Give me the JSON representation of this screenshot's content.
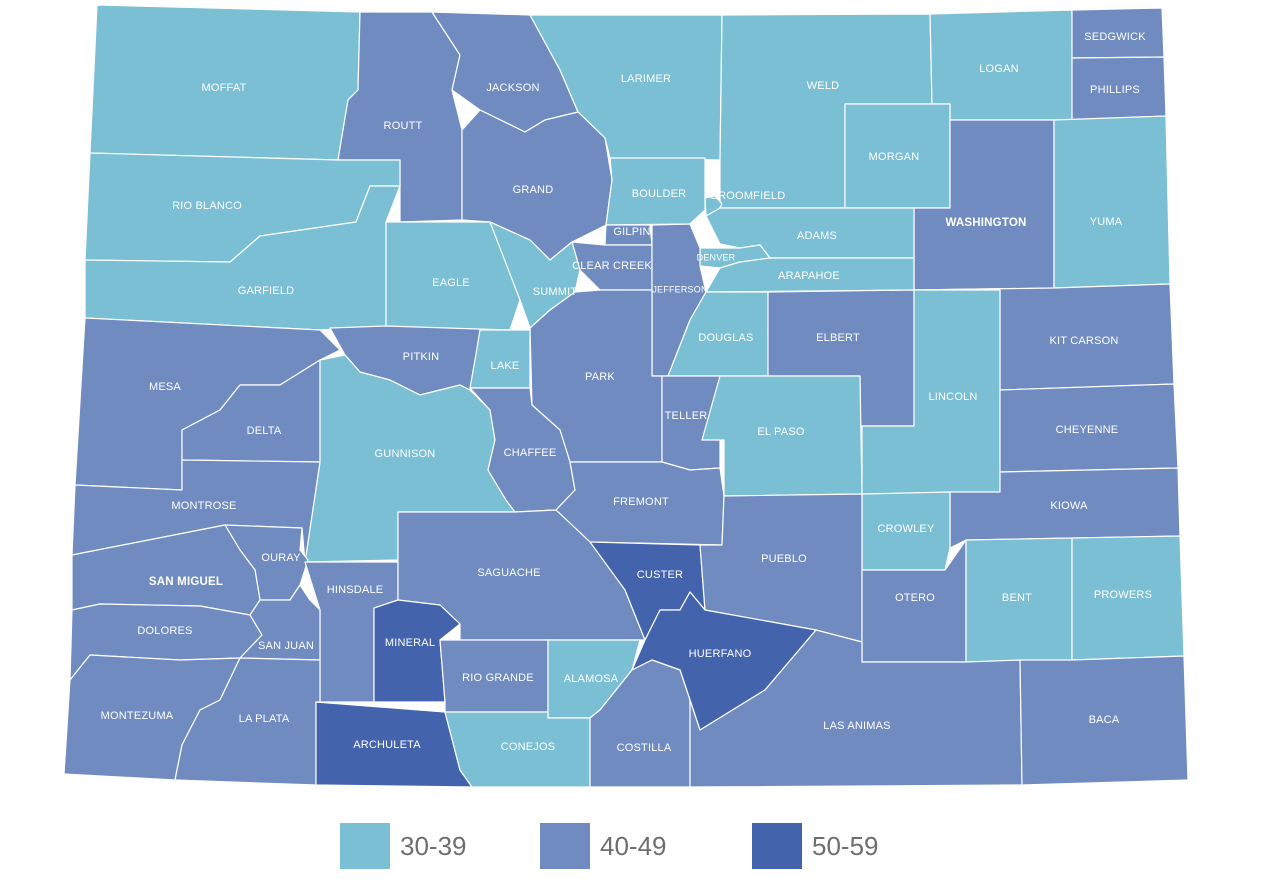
{
  "colors": {
    "band_30_39": "#7abfd3",
    "band_40_49": "#6f8bc0",
    "band_50_59": "#4463ad",
    "border": "#ffffff",
    "label": "#ffffff",
    "legend_text": "#6e6e6e"
  },
  "legend": [
    {
      "label": "30-39",
      "color": "#7abfd3"
    },
    {
      "label": "40-49",
      "color": "#6f8bc0"
    },
    {
      "label": "50-59",
      "color": "#4463ad"
    }
  ],
  "counties": [
    {
      "name": "MOFFAT",
      "band": "30-39"
    },
    {
      "name": "ROUTT",
      "band": "40-49"
    },
    {
      "name": "JACKSON",
      "band": "40-49"
    },
    {
      "name": "LARIMER",
      "band": "30-39"
    },
    {
      "name": "WELD",
      "band": "30-39"
    },
    {
      "name": "LOGAN",
      "band": "30-39"
    },
    {
      "name": "SEDGWICK",
      "band": "40-49"
    },
    {
      "name": "PHILLIPS",
      "band": "40-49"
    },
    {
      "name": "MORGAN",
      "band": "30-39"
    },
    {
      "name": "WASHINGTON",
      "band": "40-49"
    },
    {
      "name": "YUMA",
      "band": "30-39"
    },
    {
      "name": "RIO BLANCO",
      "band": "30-39"
    },
    {
      "name": "GRAND",
      "band": "40-49"
    },
    {
      "name": "BOULDER",
      "band": "30-39"
    },
    {
      "name": "BROOMFIELD",
      "band": "30-39"
    },
    {
      "name": "GILPIN",
      "band": "40-49"
    },
    {
      "name": "CLEAR CREEK",
      "band": "40-49"
    },
    {
      "name": "ADAMS",
      "band": "30-39"
    },
    {
      "name": "DENVER",
      "band": "30-39"
    },
    {
      "name": "ARAPAHOE",
      "band": "30-39"
    },
    {
      "name": "JEFFERSON",
      "band": "40-49"
    },
    {
      "name": "GARFIELD",
      "band": "30-39"
    },
    {
      "name": "EAGLE",
      "band": "30-39"
    },
    {
      "name": "SUMMIT",
      "band": "30-39"
    },
    {
      "name": "DOUGLAS",
      "band": "30-39"
    },
    {
      "name": "ELBERT",
      "band": "40-49"
    },
    {
      "name": "KIT CARSON",
      "band": "40-49"
    },
    {
      "name": "LINCOLN",
      "band": "30-39"
    },
    {
      "name": "CHEYENNE",
      "band": "40-49"
    },
    {
      "name": "MESA",
      "band": "40-49"
    },
    {
      "name": "PITKIN",
      "band": "40-49"
    },
    {
      "name": "LAKE",
      "band": "30-39"
    },
    {
      "name": "PARK",
      "band": "40-49"
    },
    {
      "name": "TELLER",
      "band": "40-49"
    },
    {
      "name": "EL PASO",
      "band": "30-39"
    },
    {
      "name": "DELTA",
      "band": "40-49"
    },
    {
      "name": "GUNNISON",
      "band": "30-39"
    },
    {
      "name": "CHAFFEE",
      "band": "40-49"
    },
    {
      "name": "FREMONT",
      "band": "40-49"
    },
    {
      "name": "MONTROSE",
      "band": "40-49"
    },
    {
      "name": "KIOWA",
      "band": "40-49"
    },
    {
      "name": "CROWLEY",
      "band": "30-39"
    },
    {
      "name": "OURAY",
      "band": "40-49"
    },
    {
      "name": "SAN MIGUEL",
      "band": "40-49"
    },
    {
      "name": "HINSDALE",
      "band": "40-49"
    },
    {
      "name": "SAGUACHE",
      "band": "40-49"
    },
    {
      "name": "CUSTER",
      "band": "50-59"
    },
    {
      "name": "PUEBLO",
      "band": "40-49"
    },
    {
      "name": "OTERO",
      "band": "40-49"
    },
    {
      "name": "BENT",
      "band": "30-39"
    },
    {
      "name": "PROWERS",
      "band": "30-39"
    },
    {
      "name": "DOLORES",
      "band": "40-49"
    },
    {
      "name": "SAN JUAN",
      "band": "40-49"
    },
    {
      "name": "MINERAL",
      "band": "50-59"
    },
    {
      "name": "HUERFANO",
      "band": "50-59"
    },
    {
      "name": "RIO GRANDE",
      "band": "40-49"
    },
    {
      "name": "ALAMOSA",
      "band": "30-39"
    },
    {
      "name": "MONTEZUMA",
      "band": "40-49"
    },
    {
      "name": "LA PLATA",
      "band": "40-49"
    },
    {
      "name": "ARCHULETA",
      "band": "50-59"
    },
    {
      "name": "CONEJOS",
      "band": "30-39"
    },
    {
      "name": "COSTILLA",
      "band": "40-49"
    },
    {
      "name": "LAS ANIMAS",
      "band": "40-49"
    },
    {
      "name": "BACA",
      "band": "40-49"
    }
  ]
}
